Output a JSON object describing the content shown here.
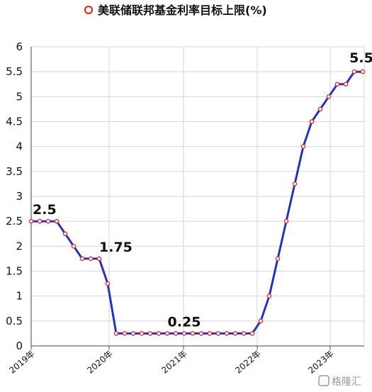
{
  "chart_data": {
    "type": "line",
    "legend": {
      "label": "美联储联邦基金利率目标上限(%)",
      "position": "top-center"
    },
    "ylim": [
      0,
      6
    ],
    "yticks": [
      "0",
      "0.5",
      "1",
      "1.5",
      "2",
      "2.5",
      "3",
      "3.5",
      "4",
      "4.5",
      "5",
      "5.5",
      "6"
    ],
    "xticks": [
      "2019年",
      "2020年",
      "2021年",
      "2022年",
      "2023年"
    ],
    "grid": {
      "horizontal": true,
      "vertical": true
    },
    "series": [
      {
        "values": [
          2.5,
          2.5,
          2.5,
          2.5,
          2.25,
          2.0,
          1.75,
          1.75,
          1.75,
          1.25,
          0.25,
          0.25,
          0.25,
          0.25,
          0.25,
          0.25,
          0.25,
          0.25,
          0.25,
          0.25,
          0.25,
          0.25,
          0.25,
          0.25,
          0.25,
          0.25,
          0.25,
          0.5,
          1.0,
          1.75,
          2.5,
          3.25,
          4.0,
          4.5,
          4.75,
          5.0,
          5.25,
          5.25,
          5.5,
          5.5
        ],
        "color": "#2233c4",
        "marker_color": "#e0302a"
      }
    ],
    "data_labels": [
      {
        "index": 0,
        "text": "2.5"
      },
      {
        "index": 8,
        "text": "1.75"
      },
      {
        "index": 18,
        "text": "0.25"
      },
      {
        "index": 38,
        "text": "5.5"
      }
    ]
  },
  "watermark": {
    "text": "格隆汇"
  }
}
